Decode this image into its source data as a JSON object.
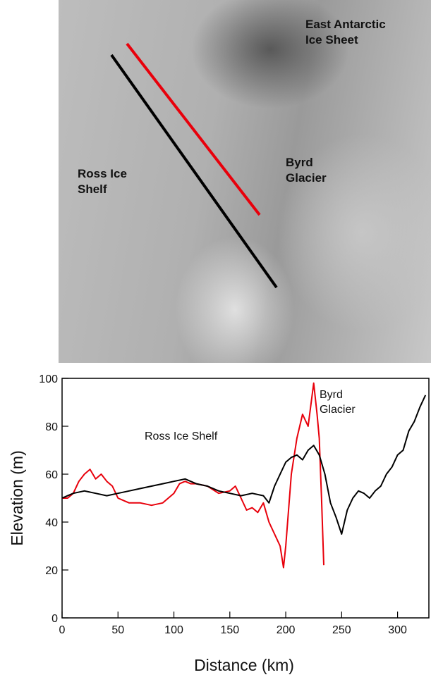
{
  "map": {
    "labels": [
      "East Antarctic Ice Sheet",
      "Ross Ice Shelf",
      "Byrd Glacier"
    ]
  },
  "chart_data": {
    "type": "line",
    "xlabel": "Distance (km)",
    "ylabel": "Elevation (m)",
    "annotations": [
      "Ross Ice Shelf",
      "Byrd Glacier"
    ],
    "xlim": [
      0,
      328
    ],
    "ylim": [
      0,
      100
    ],
    "xticks": [
      0,
      50,
      100,
      150,
      200,
      250,
      300
    ],
    "yticks": [
      0,
      20,
      40,
      60,
      80,
      100
    ],
    "series": [
      {
        "color": "#000000",
        "x": [
          0,
          5,
          10,
          20,
          30,
          40,
          50,
          60,
          70,
          80,
          90,
          100,
          110,
          120,
          130,
          140,
          150,
          160,
          170,
          180,
          185,
          190,
          195,
          200,
          205,
          210,
          215,
          220,
          225,
          230,
          235,
          240,
          245,
          250,
          255,
          260,
          265,
          270,
          275,
          280,
          285,
          290,
          295,
          300,
          305,
          310,
          315,
          320,
          325
        ],
        "values": [
          50,
          51,
          52,
          53,
          52,
          51,
          52,
          53,
          54,
          55,
          56,
          57,
          58,
          56,
          55,
          53,
          52,
          51,
          52,
          51,
          48,
          55,
          60,
          65,
          67,
          68,
          66,
          70,
          72,
          68,
          60,
          48,
          42,
          35,
          45,
          50,
          53,
          52,
          50,
          53,
          55,
          60,
          63,
          68,
          70,
          78,
          82,
          88,
          93
        ]
      },
      {
        "color": "#e8000b",
        "x": [
          0,
          5,
          10,
          15,
          20,
          25,
          30,
          35,
          40,
          45,
          50,
          55,
          60,
          70,
          80,
          90,
          100,
          105,
          110,
          115,
          120,
          130,
          140,
          150,
          155,
          160,
          165,
          170,
          175,
          180,
          185,
          190,
          195,
          198,
          200,
          205,
          210,
          215,
          220,
          225,
          228,
          230,
          232,
          234
        ],
        "values": [
          50,
          50,
          52,
          57,
          60,
          62,
          58,
          60,
          57,
          55,
          50,
          49,
          48,
          48,
          47,
          48,
          52,
          56,
          57,
          56,
          56,
          55,
          52,
          53,
          55,
          50,
          45,
          46,
          44,
          48,
          40,
          35,
          30,
          21,
          30,
          60,
          75,
          85,
          80,
          98,
          85,
          75,
          50,
          22
        ]
      }
    ]
  }
}
